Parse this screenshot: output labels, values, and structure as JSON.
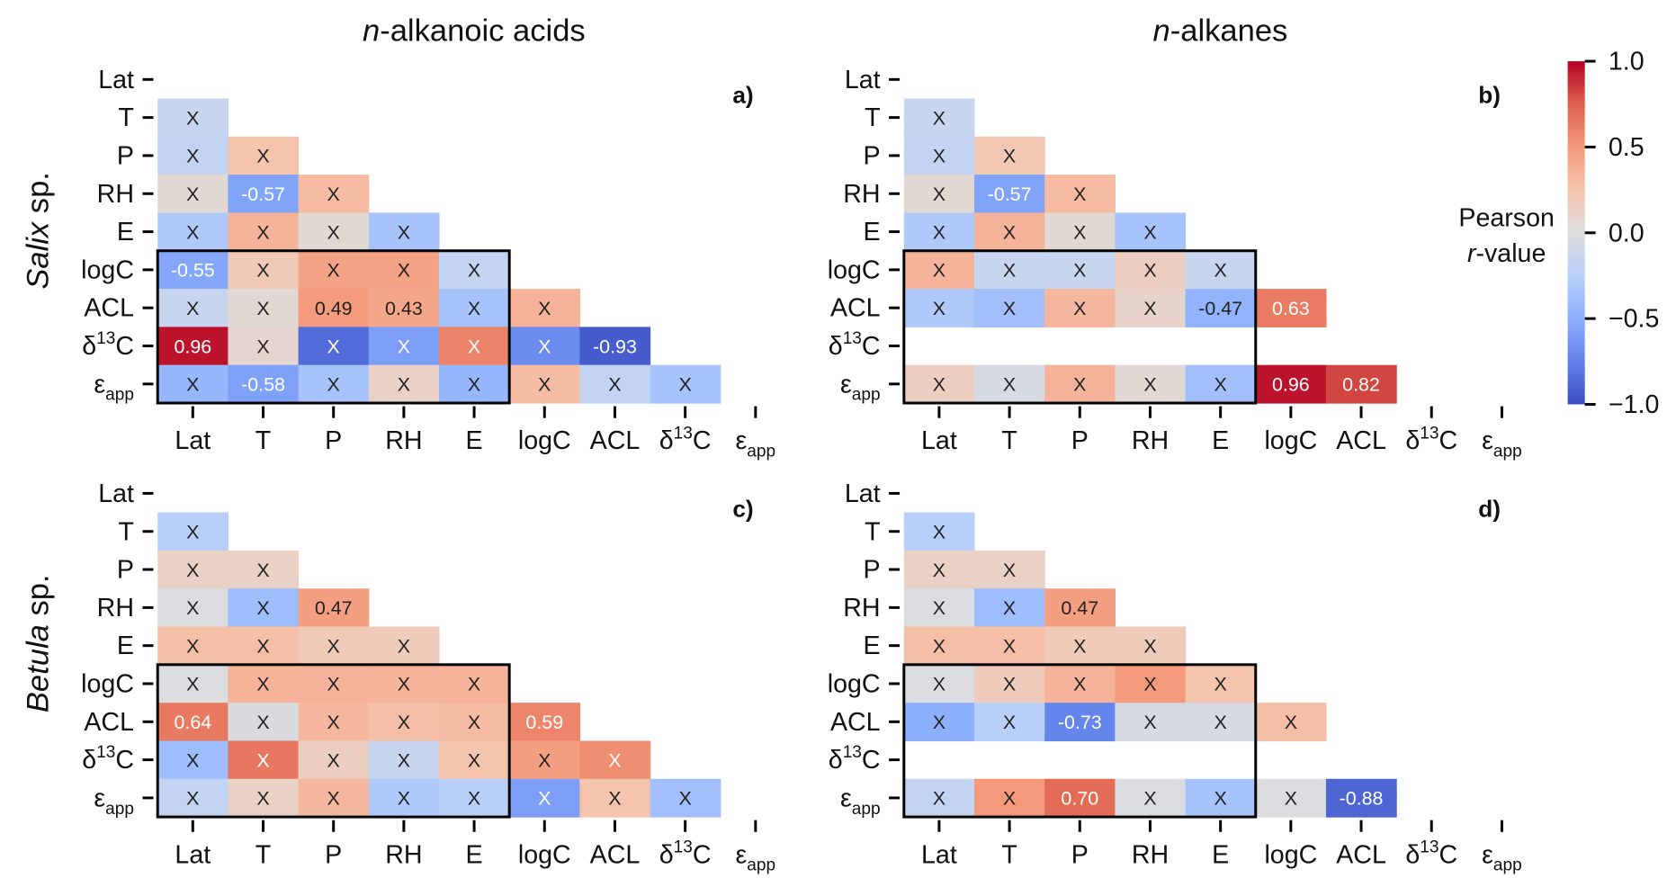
{
  "chart_data": {
    "type": "heatmap",
    "colormap": "coolwarm",
    "column_titles": [
      {
        "italic": "n",
        "rest": "-alkanoic acids"
      },
      {
        "italic": "n",
        "rest": "-alkanes"
      }
    ],
    "row_titles": [
      {
        "italic": "Salix",
        "rest": " sp."
      },
      {
        "italic": "Betula",
        "rest": " sp."
      }
    ],
    "variables": [
      {
        "pre": "Lat"
      },
      {
        "pre": "T"
      },
      {
        "pre": "P"
      },
      {
        "pre": "RH"
      },
      {
        "pre": "E"
      },
      {
        "pre": "logC"
      },
      {
        "pre": "ACL"
      },
      {
        "pre": "δ",
        "sup": "13",
        "post": "C"
      },
      {
        "pre": "ε",
        "sub": "app"
      }
    ],
    "colorbar": {
      "label_line1": "Pearson",
      "label_italic": "r",
      "label_rest": "-value",
      "range": [
        -1,
        1
      ],
      "ticks": [
        "1.0",
        "0.5",
        "0.0",
        "−0.5",
        "−1.0"
      ],
      "tick_values": [
        1,
        0.5,
        0,
        -0.5,
        -1
      ]
    },
    "highlight_box": {
      "rows": [
        "logC",
        "ACL",
        "δ13C",
        "εapp"
      ],
      "columns": [
        "Lat",
        "T",
        "P",
        "RH",
        "E"
      ]
    },
    "panels": [
      {
        "letter": "a)",
        "rows": [
          [
            [
              -0.15,
              "X"
            ]
          ],
          [
            [
              -0.18,
              "X"
            ],
            [
              0.25,
              "X"
            ]
          ],
          [
            [
              0.05,
              "X"
            ],
            [
              -0.57,
              "-0.57"
            ],
            [
              0.3,
              "X"
            ]
          ],
          [
            [
              -0.3,
              "X"
            ],
            [
              0.35,
              "X"
            ],
            [
              0.05,
              "X"
            ],
            [
              -0.35,
              "X"
            ]
          ],
          [
            [
              -0.55,
              "-0.55"
            ],
            [
              0.2,
              "X"
            ],
            [
              0.45,
              "X"
            ],
            [
              0.45,
              "X"
            ],
            [
              -0.18,
              "X"
            ]
          ],
          [
            [
              -0.15,
              "X"
            ],
            [
              0.05,
              "X"
            ],
            [
              0.49,
              "0.49"
            ],
            [
              0.43,
              "0.43"
            ],
            [
              -0.35,
              "X"
            ],
            [
              0.35,
              "X"
            ]
          ],
          [
            [
              0.96,
              "0.96"
            ],
            [
              0.08,
              "X"
            ],
            [
              -0.85,
              "X"
            ],
            [
              -0.6,
              "X"
            ],
            [
              0.6,
              "X"
            ],
            [
              -0.7,
              "X"
            ],
            [
              -0.93,
              "-0.93"
            ]
          ],
          [
            [
              -0.45,
              "X"
            ],
            [
              -0.58,
              "-0.58"
            ],
            [
              -0.35,
              "X"
            ],
            [
              0.12,
              "X"
            ],
            [
              -0.45,
              "X"
            ],
            [
              0.3,
              "X"
            ],
            [
              -0.18,
              "X"
            ],
            [
              -0.35,
              "X"
            ]
          ]
        ]
      },
      {
        "letter": "b)",
        "rows": [
          [
            [
              -0.15,
              "X"
            ]
          ],
          [
            [
              -0.18,
              "X"
            ],
            [
              0.22,
              "X"
            ]
          ],
          [
            [
              0.05,
              "X"
            ],
            [
              -0.57,
              "-0.57"
            ],
            [
              0.3,
              "X"
            ]
          ],
          [
            [
              -0.3,
              "X"
            ],
            [
              0.35,
              "X"
            ],
            [
              0.05,
              "X"
            ],
            [
              -0.35,
              "X"
            ]
          ],
          [
            [
              0.35,
              "X"
            ],
            [
              -0.15,
              "X"
            ],
            [
              -0.15,
              "X"
            ],
            [
              0.15,
              "X"
            ],
            [
              -0.15,
              "X"
            ]
          ],
          [
            [
              -0.3,
              "X"
            ],
            [
              -0.38,
              "X"
            ],
            [
              0.32,
              "X"
            ],
            [
              0.1,
              "X"
            ],
            [
              -0.47,
              "-0.47"
            ],
            [
              0.63,
              "0.63"
            ]
          ],
          null,
          [
            [
              0.15,
              "X"
            ],
            [
              -0.05,
              "X"
            ],
            [
              0.35,
              "X"
            ],
            [
              0.05,
              "X"
            ],
            [
              -0.38,
              "X"
            ],
            [
              0.96,
              "0.96"
            ],
            [
              0.82,
              "0.82"
            ]
          ]
        ]
      },
      {
        "letter": "c)",
        "rows": [
          [
            [
              -0.25,
              "X"
            ]
          ],
          [
            [
              0.12,
              "X"
            ],
            [
              0.12,
              "X"
            ]
          ],
          [
            [
              -0.02,
              "X"
            ],
            [
              -0.4,
              "X"
            ],
            [
              0.47,
              "0.47"
            ]
          ],
          [
            [
              0.28,
              "X"
            ],
            [
              0.28,
              "X"
            ],
            [
              0.2,
              "X"
            ],
            [
              0.18,
              "X"
            ]
          ],
          [
            [
              -0.02,
              "X"
            ],
            [
              0.35,
              "X"
            ],
            [
              0.35,
              "X"
            ],
            [
              0.35,
              "X"
            ],
            [
              0.35,
              "X"
            ]
          ],
          [
            [
              0.64,
              "0.64"
            ],
            [
              -0.03,
              "X"
            ],
            [
              0.32,
              "X"
            ],
            [
              0.28,
              "X"
            ],
            [
              0.3,
              "X"
            ],
            [
              0.59,
              "0.59"
            ]
          ],
          [
            [
              -0.4,
              "X"
            ],
            [
              0.65,
              "X"
            ],
            [
              0.15,
              "X"
            ],
            [
              -0.15,
              "X"
            ],
            [
              0.25,
              "X"
            ],
            [
              0.47,
              "X"
            ],
            [
              0.55,
              "X"
            ]
          ],
          [
            [
              -0.18,
              "X"
            ],
            [
              0.12,
              "X"
            ],
            [
              0.32,
              "X"
            ],
            [
              -0.3,
              "X"
            ],
            [
              -0.25,
              "X"
            ],
            [
              -0.6,
              "X"
            ],
            [
              0.25,
              "X"
            ],
            [
              -0.38,
              "X"
            ]
          ]
        ]
      },
      {
        "letter": "d)",
        "rows": [
          [
            [
              -0.25,
              "X"
            ]
          ],
          [
            [
              0.12,
              "X"
            ],
            [
              0.12,
              "X"
            ]
          ],
          [
            [
              -0.02,
              "X"
            ],
            [
              -0.4,
              "X"
            ],
            [
              0.47,
              "0.47"
            ]
          ],
          [
            [
              0.28,
              "X"
            ],
            [
              0.28,
              "X"
            ],
            [
              0.2,
              "X"
            ],
            [
              0.18,
              "X"
            ]
          ],
          [
            [
              -0.02,
              "X"
            ],
            [
              0.18,
              "X"
            ],
            [
              0.35,
              "X"
            ],
            [
              0.5,
              "X"
            ],
            [
              0.25,
              "X"
            ]
          ],
          [
            [
              -0.5,
              "X"
            ],
            [
              -0.25,
              "X"
            ],
            [
              -0.73,
              "-0.73"
            ],
            [
              -0.05,
              "X"
            ],
            [
              -0.05,
              "X"
            ],
            [
              0.28,
              "X"
            ]
          ],
          null,
          [
            [
              -0.18,
              "X"
            ],
            [
              0.5,
              "X"
            ],
            [
              0.7,
              "0.70"
            ],
            [
              -0.02,
              "X"
            ],
            [
              -0.35,
              "X"
            ],
            [
              -0.02,
              "X"
            ],
            [
              -0.88,
              "-0.88"
            ]
          ]
        ]
      }
    ]
  }
}
